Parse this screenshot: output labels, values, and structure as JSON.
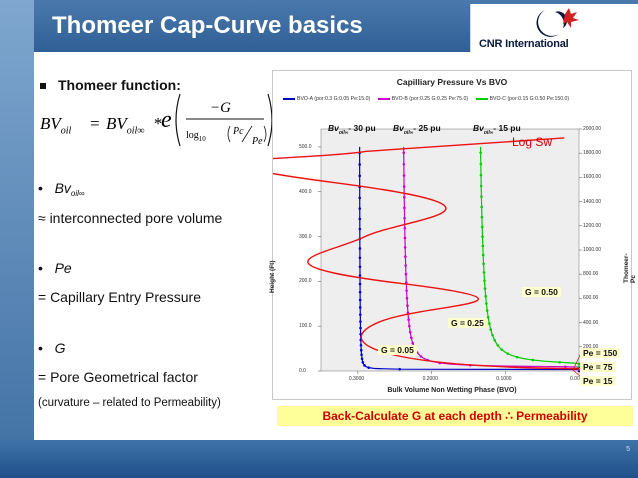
{
  "slide": {
    "title": "Thomeer Cap-Curve basics",
    "logo_text": "CNR International",
    "page_number": "5"
  },
  "left": {
    "heading": "Thomeer function:",
    "formula_lhs": "BV",
    "formula_lhs_sub": "oil",
    "formula_eq": "=",
    "formula_rhs": "BV",
    "formula_rhs_sub": "oil∞",
    "formula_mult": "*",
    "formula_e": "e",
    "formula_num": "−G",
    "formula_log": "log",
    "formula_log_base": "10",
    "formula_pc": "Pc",
    "formula_pe": "Pe",
    "bullet1_label": "Bv",
    "bullet1_sub": "oil∞",
    "line1": "≈ interconnected pore volume",
    "bullet2_label": "Pe",
    "line2": "= Capillary Entry Pressure",
    "bullet3_label": "G",
    "line3": "= Pore Geometrical factor",
    "line4": "(curvature – related to Permeability)"
  },
  "chart_data": {
    "type": "line",
    "title": "Capilliary Pressure Vs BVO",
    "xlabel": "Bulk Volume Non Wetting Phase (BVO)",
    "ylabel": "Height (Ft)",
    "y2label": "Thomeer-Pc",
    "x_ticks": [
      "0.3000",
      "0.2000",
      "0.1000",
      "0.0000"
    ],
    "y_ticks": [
      "0.0",
      "100.0",
      "200.0",
      "300.0",
      "400.0",
      "500.0"
    ],
    "y2_ticks": [
      "0.00",
      "200.00",
      "400.00",
      "600.00",
      "800.00",
      "1000.00",
      "1200.00",
      "1400.00",
      "1600.00",
      "1800.00",
      "2000.00"
    ],
    "x_reversed": true,
    "xlim": [
      0.35,
      0.0
    ],
    "ylim": [
      0,
      540
    ],
    "y2lim": [
      0,
      2000
    ],
    "legend_position": "top",
    "series": [
      {
        "name": "BVO-A (por:0.3 G:0.05 Pe:15.0)",
        "color": "#0000cc",
        "bvinf": 0.3,
        "G": 0.05,
        "Pe": 15.0
      },
      {
        "name": "BVO-B (por:0.25 G:0.25 Pe:75.0)",
        "color": "#cc00cc",
        "bvinf": 0.25,
        "G": 0.25,
        "Pe": 75.0
      },
      {
        "name": "BVO-C (por:0.15 G:0.50 Pe:150.0)",
        "color": "#00cc00",
        "bvinf": 0.15,
        "G": 0.5,
        "Pe": 150.0
      }
    ],
    "annotations": {
      "bv_a": "Bv",
      "bv_a_sub": "oil∞",
      "bv_a_val": "- 30 pu",
      "bv_b": "Bv",
      "bv_b_sub": "oil∞",
      "bv_b_val": "- 25 pu",
      "bv_c": "Bv",
      "bv_c_sub": "oil∞",
      "bv_c_val": "- 15 pu",
      "log_sw": "Log Sw",
      "g1": "G = 0.05",
      "g2": "G = 0.25",
      "g3": "G = 0.50",
      "pe1": "Pe = 150",
      "pe2": "Pe = 75",
      "pe3": "Pe = 15"
    }
  },
  "banner": {
    "text": "Back-Calculate G at each depth ∴ Permeability"
  }
}
